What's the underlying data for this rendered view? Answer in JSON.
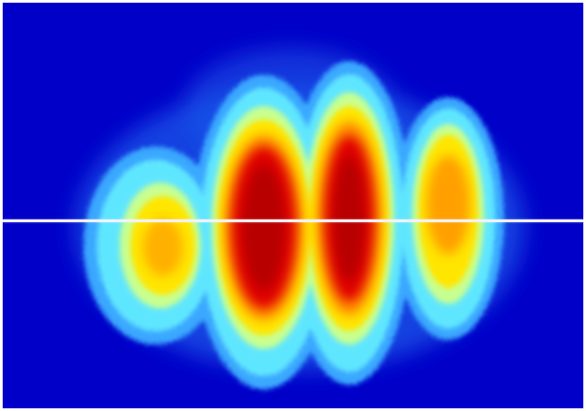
{
  "image": {
    "description_colors": {
      "background": "#0000c8",
      "outer_halo": "#1e90ff",
      "cyan": "#38e8ff",
      "yellow": "#ffe600",
      "orange": "#ff8a00",
      "red": "#e00000",
      "line": "#f2f2ff"
    },
    "lobes": [
      {
        "name": "left-lobe",
        "peak_level": "yellow"
      },
      {
        "name": "center-left-lobe",
        "peak_level": "red"
      },
      {
        "name": "center-right-lobe",
        "peak_level": "red"
      },
      {
        "name": "right-lobe",
        "peak_level": "orange"
      }
    ]
  }
}
